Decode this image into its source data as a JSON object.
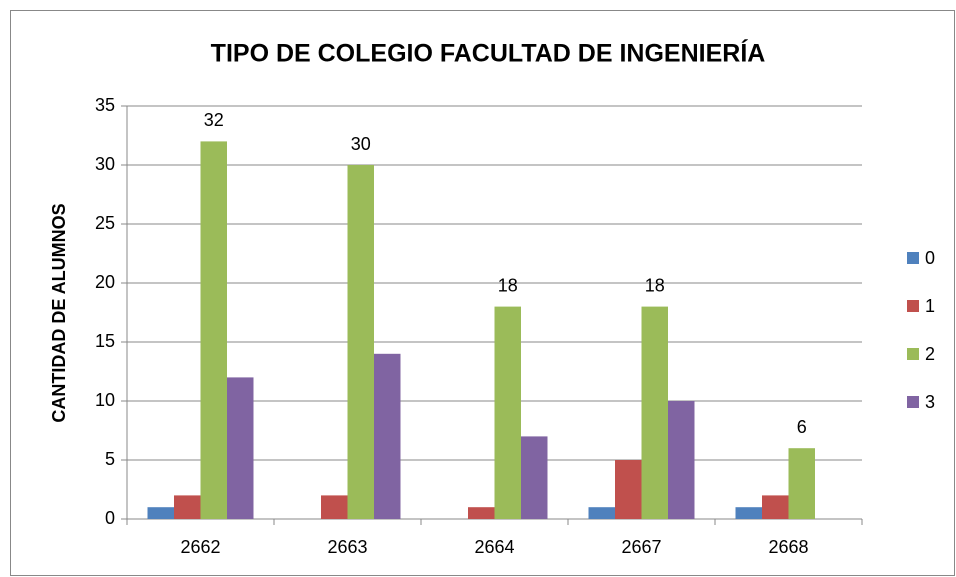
{
  "chart_data": {
    "type": "bar",
    "title": "TIPO DE COLEGIO FACULTAD DE INGENIERÍA",
    "y_label": "CANTIDAD DE ALUMNOS",
    "categories": [
      "2662",
      "2663",
      "2664",
      "2667",
      "2668"
    ],
    "series": [
      {
        "name": "0",
        "color": "#4f81bd",
        "values": [
          1,
          0,
          0,
          1,
          1
        ]
      },
      {
        "name": "1",
        "color": "#c0504d",
        "values": [
          2,
          2,
          1,
          5,
          2
        ]
      },
      {
        "name": "2",
        "color": "#9bbb59",
        "values": [
          32,
          30,
          18,
          18,
          6
        ],
        "show_labels": true
      },
      {
        "name": "3",
        "color": "#8064a2",
        "values": [
          12,
          14,
          7,
          10,
          0
        ]
      }
    ],
    "ylim": [
      0,
      35
    ],
    "yticks": [
      0,
      5,
      10,
      15,
      20,
      25,
      30,
      35
    ],
    "grid": true,
    "legend": "right"
  }
}
